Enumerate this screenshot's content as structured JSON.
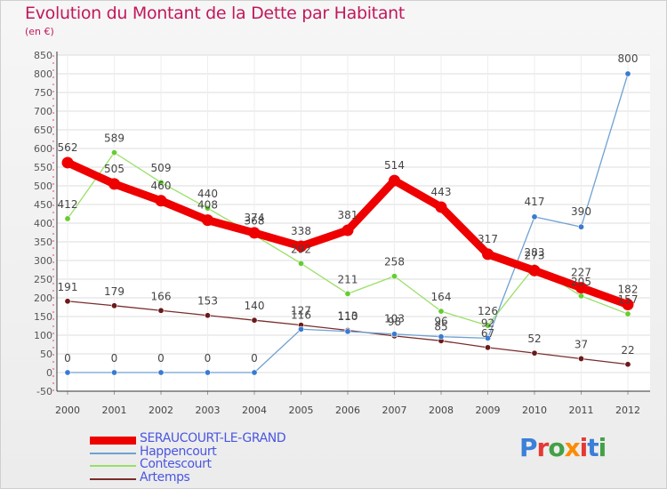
{
  "header": {
    "title": "Evolution du Montant de la Dette par Habitant",
    "subtitle": "(en €)"
  },
  "logo": {
    "text": "Proxiti"
  },
  "chart_data": {
    "type": "line",
    "title": "Evolution du Montant de la Dette par Habitant",
    "subtitle": "(en €)",
    "xlabel": "",
    "ylabel": "",
    "x": [
      "2000",
      "2001",
      "2002",
      "2003",
      "2004",
      "2005",
      "2006",
      "2007",
      "2008",
      "2009",
      "2010",
      "2011",
      "2012"
    ],
    "ylim": [
      -50,
      850
    ],
    "yticks": [
      "-50",
      "0",
      "50",
      "100",
      "150",
      "200",
      "250",
      "300",
      "350",
      "400",
      "450",
      "500",
      "550",
      "600",
      "650",
      "700",
      "750",
      "800",
      "850"
    ],
    "grid": "horizontal",
    "legend_position": "bottom-left",
    "series": [
      {
        "name": "SERAUCOURT-LE-GRAND",
        "color": "#ee0000",
        "values": [
          562,
          505,
          460,
          408,
          374,
          338,
          381,
          514,
          443,
          317,
          273,
          227,
          182
        ]
      },
      {
        "name": "Happencourt",
        "color": "#6fa1d2",
        "values": [
          0,
          0,
          0,
          0,
          0,
          116,
          110,
          103,
          96,
          92,
          417,
          390,
          800
        ]
      },
      {
        "name": "Contescourt",
        "color": "#99e066",
        "values": [
          412,
          589,
          509,
          440,
          368,
          292,
          211,
          258,
          164,
          126,
          283,
          205,
          157
        ]
      },
      {
        "name": "Artemps",
        "color": "#7a2c2c",
        "values": [
          191,
          179,
          166,
          153,
          140,
          127,
          113,
          98,
          85,
          67,
          52,
          37,
          22
        ]
      }
    ],
    "data_labels": [
      [
        "562",
        "505",
        "460",
        "408",
        "374",
        "338",
        "381",
        "514",
        "443",
        "317",
        "273",
        "227",
        "182"
      ],
      [
        "0",
        "0",
        "0",
        "0",
        "0",
        "116",
        "110",
        "103",
        "96",
        "92",
        "417",
        "390",
        "800"
      ],
      [
        "412",
        "589",
        "509",
        "440",
        "368",
        "292",
        "211",
        "258",
        "164",
        "126",
        "283",
        "205",
        "157"
      ],
      [
        "191",
        "179",
        "166",
        "153",
        "140",
        "127",
        "113",
        "98",
        "85",
        "67",
        "52",
        "37",
        "22"
      ]
    ]
  }
}
